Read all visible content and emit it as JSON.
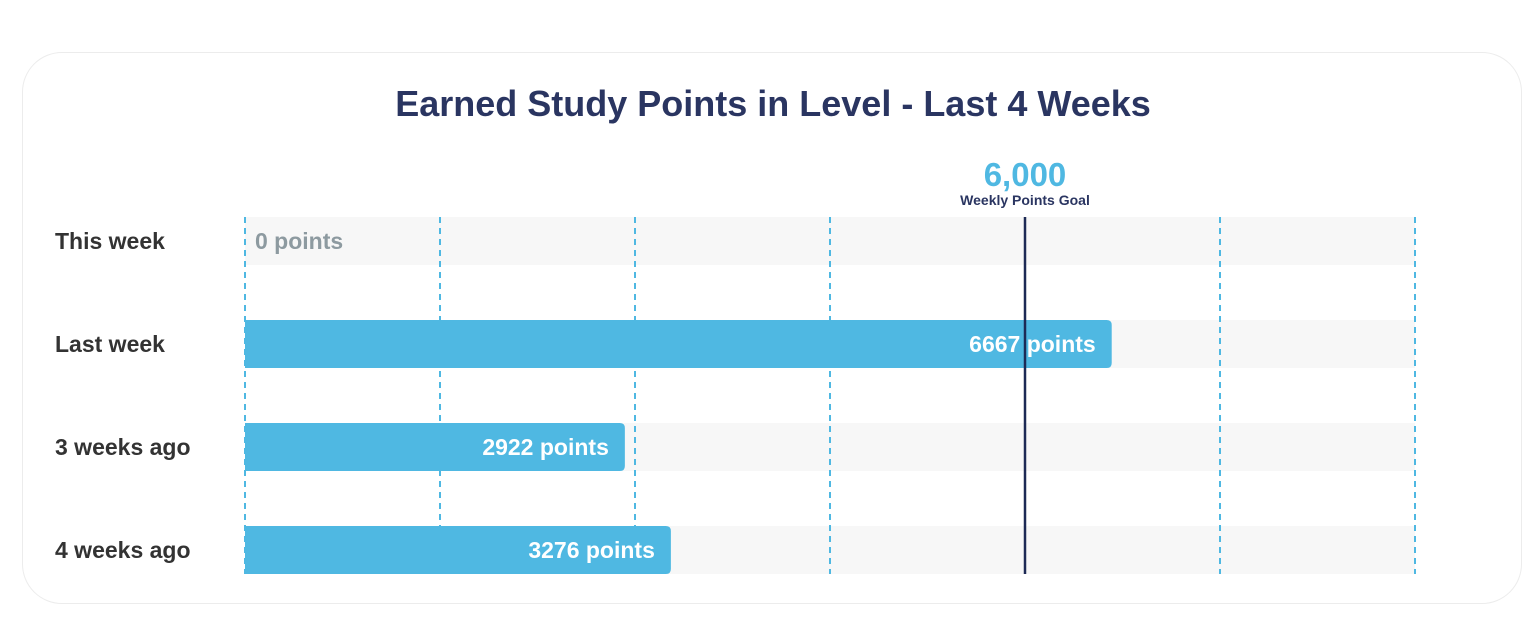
{
  "chart_data": {
    "type": "bar",
    "orientation": "horizontal",
    "title": "Earned Study Points in Level - Last 4 Weeks",
    "categories": [
      "This week",
      "Last week",
      "3 weeks ago",
      "4 weeks ago"
    ],
    "values": [
      0,
      6667,
      2922,
      3276
    ],
    "value_labels": [
      "0 points",
      "6667 points",
      "2922 points",
      "3276 points"
    ],
    "xlim": [
      0,
      9000
    ],
    "grid_step": 1500,
    "goal": {
      "value": 6000,
      "value_label": "6,000",
      "caption": "Weekly Points Goal"
    },
    "colors": {
      "bar": "#4fb8e2",
      "grid": "#4fb8e2",
      "goal_line": "#1d2a55",
      "track": "#f7f7f7",
      "title": "#2a3561"
    }
  }
}
